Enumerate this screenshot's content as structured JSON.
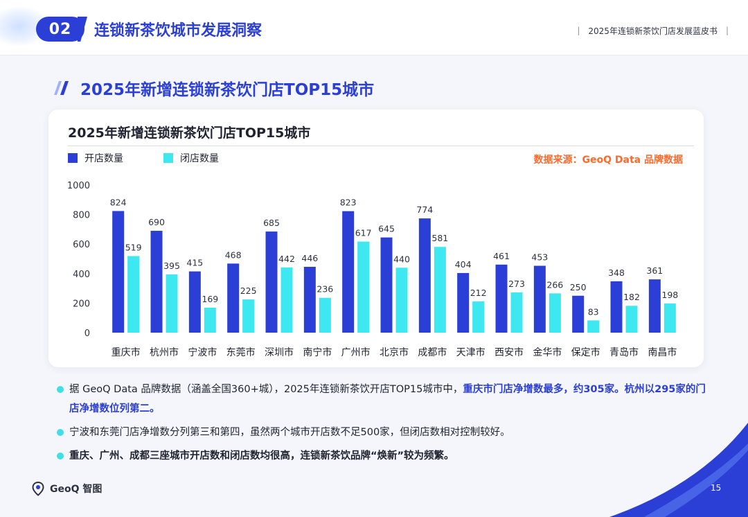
{
  "header": {
    "section_number": "02",
    "section_title": "连锁新茶饮城市发展洞察",
    "report_name": "2025年连锁新茶饮门店发展蓝皮书",
    "separator": "|"
  },
  "slide_title": "2025年新增连锁新茶饮门店TOP15城市",
  "source_note": "数据来源：GeoQ Data 品牌数据",
  "colors": {
    "open": "#2b3fd6",
    "close": "#3ee8f0",
    "accent": "#2b3fd6",
    "source": "#ff6a2b",
    "bullet": "#3ee0e6"
  },
  "chart_data": {
    "type": "bar",
    "title": "2025年新增连锁新茶饮门店TOP15城市",
    "categories": [
      "重庆市",
      "杭州市",
      "宁波市",
      "东莞市",
      "深圳市",
      "南宁市",
      "广州市",
      "北京市",
      "成都市",
      "天津市",
      "西安市",
      "金华市",
      "保定市",
      "青岛市",
      "南昌市"
    ],
    "series": [
      {
        "name": "开店数量",
        "values": [
          824,
          690,
          415,
          468,
          685,
          446,
          823,
          645,
          774,
          404,
          461,
          453,
          250,
          348,
          361
        ]
      },
      {
        "name": "闭店数量",
        "values": [
          519,
          395,
          169,
          225,
          442,
          236,
          617,
          440,
          581,
          212,
          273,
          266,
          83,
          182,
          198
        ]
      }
    ],
    "yticks": [
      0,
      200,
      400,
      600,
      800,
      1000
    ],
    "ylim": [
      0,
      1000
    ],
    "xlabel": "",
    "ylabel": "",
    "grid": false,
    "legend": "top-left",
    "data_labels": true
  },
  "bullets": [
    {
      "segments": [
        {
          "text": "据 GeoQ Data 品牌数据（涵盖全国360+城），2025年连锁新茶饮开店TOP15城市中，",
          "style": "normal"
        },
        {
          "text": "重庆市门店净增数最多，约305家。杭州以295家的门店净增数位列第二。",
          "style": "hl"
        }
      ]
    },
    {
      "segments": [
        {
          "text": "宁波和东莞门店净增数分列第三和第四，虽然两个城市开店数不足500家，但闭店数相对控制较好。",
          "style": "normal"
        }
      ]
    },
    {
      "segments": [
        {
          "text": "重庆、广州、成都三座城市开店数和闭店数均很高，连锁新茶饮品牌“焕新”较为频繁。",
          "style": "bold"
        }
      ]
    }
  ],
  "footer": {
    "logo_text": "GeoQ 智图",
    "page_number": "15"
  }
}
